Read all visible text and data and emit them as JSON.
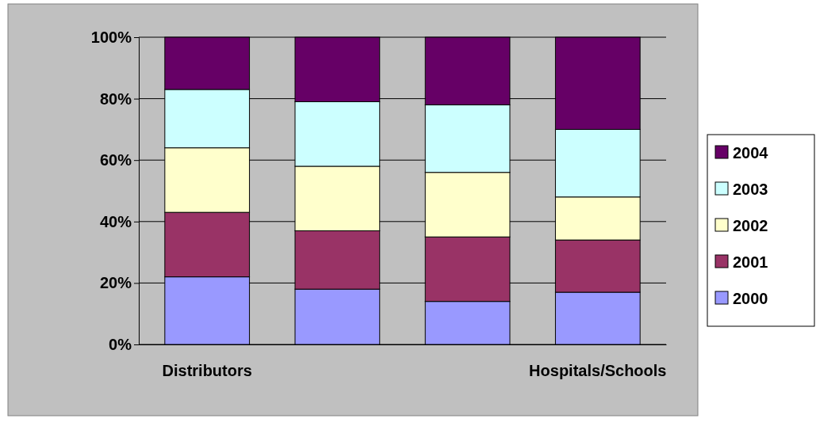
{
  "chart_data": {
    "type": "bar",
    "stacked": true,
    "categories": [
      "Distributors",
      null,
      null,
      "Hospitals/Schools"
    ],
    "series": [
      {
        "name": "2000",
        "color": "#9999ff",
        "values": [
          22,
          18,
          14,
          17
        ]
      },
      {
        "name": "2001",
        "color": "#993366",
        "values": [
          21,
          19,
          21,
          17
        ]
      },
      {
        "name": "2002",
        "color": "#ffffcc",
        "values": [
          21,
          21,
          21,
          14
        ]
      },
      {
        "name": "2003",
        "color": "#ccffff",
        "values": [
          19,
          21,
          22,
          22
        ]
      },
      {
        "name": "2004",
        "color": "#660066",
        "values": [
          17,
          21,
          22,
          30
        ]
      }
    ],
    "ylim": [
      0,
      100
    ],
    "yticks": [
      {
        "value": 0,
        "label": "0%"
      },
      {
        "value": 20,
        "label": "20%"
      },
      {
        "value": 40,
        "label": "40%"
      },
      {
        "value": 60,
        "label": "60%"
      },
      {
        "value": 80,
        "label": "80%"
      },
      {
        "value": 100,
        "label": "100%"
      }
    ],
    "grid": true,
    "legend": "right"
  }
}
